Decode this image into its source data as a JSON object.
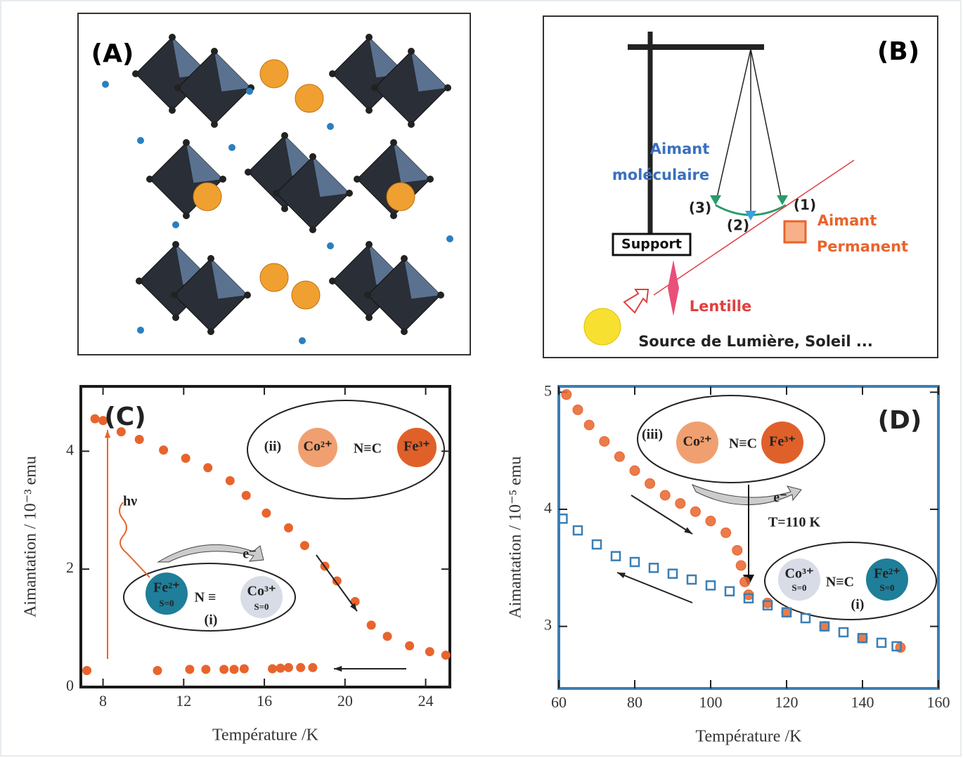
{
  "panels": {
    "A": {
      "label": "(A)"
    },
    "B": {
      "label": "(B)",
      "texts": [
        "Aimant",
        "moléculaire",
        "(3)",
        "(2)",
        "(1)",
        "Aimant",
        "Permanent",
        "Support",
        "Lentille",
        "Source de Lumière, Soleil ..."
      ]
    }
  },
  "chart_data": [
    {
      "type": "scatter",
      "label": "(C)",
      "x_label": "Température /K",
      "y_label": "Aimantation / 10⁻³ emu",
      "xlim": [
        6.9,
        25.2
      ],
      "xticks": [
        8,
        12,
        16,
        20,
        24
      ],
      "ylim": [
        0,
        5.1
      ],
      "yticks": [
        0,
        2,
        4
      ],
      "frame_color": "#1a1a1a",
      "annotations": [
        "(ii)",
        "Co²⁺",
        "N≡C",
        "Fe³⁺",
        "hν",
        "e⁻",
        "Fe²⁺",
        "S=0",
        "N ≡",
        "Co³⁺",
        "S=0",
        "(i)"
      ],
      "series": [
        {
          "color": "#e8642c",
          "marker": "circle",
          "x": [
            7.6,
            8.0,
            8.9,
            9.8,
            11.0,
            12.1,
            13.2,
            14.3,
            15.1,
            16.1,
            17.2,
            18.0,
            19.0,
            19.6,
            20.5,
            21.3,
            22.1,
            23.2,
            24.2,
            25.0
          ],
          "values": [
            4.55,
            4.52,
            4.33,
            4.2,
            4.02,
            3.88,
            3.72,
            3.5,
            3.25,
            2.95,
            2.7,
            2.4,
            2.05,
            1.8,
            1.45,
            1.05,
            0.86,
            0.7,
            0.6,
            0.54
          ]
        },
        {
          "color": "#e8642c",
          "marker": "circle",
          "x": [
            7.2,
            10.7,
            12.3,
            13.1,
            14.0,
            14.5,
            15.0,
            16.4,
            16.8,
            17.2,
            17.8,
            18.4
          ],
          "values": [
            0.28,
            0.28,
            0.3,
            0.3,
            0.3,
            0.3,
            0.31,
            0.31,
            0.32,
            0.33,
            0.33,
            0.33
          ]
        }
      ]
    },
    {
      "type": "scatter",
      "label": "(D)",
      "x_label": "Température /K",
      "y_label": "Aimantation / 10⁻⁵ emu",
      "xlim": [
        60,
        160
      ],
      "xticks": [
        60,
        80,
        100,
        120,
        140,
        160
      ],
      "ylim": [
        2.47,
        5.05
      ],
      "yticks": [
        3,
        4,
        5
      ],
      "frame_color": "#3a7fb5",
      "annotations": [
        "(iii)",
        "Co²⁺",
        "N≡C",
        "Fe³⁺",
        "e⁻",
        "T=110 K",
        "Co³⁺",
        "S=0",
        "N≡C",
        "Fe²⁺",
        "S=0",
        "(i)"
      ],
      "series": [
        {
          "color": "#e8642c",
          "marker": "circle",
          "x": [
            62,
            65,
            68,
            72,
            76,
            80,
            84,
            88,
            92,
            96,
            100,
            104,
            107,
            108,
            109,
            110,
            115,
            120,
            130,
            140,
            150
          ],
          "values": [
            4.98,
            4.85,
            4.72,
            4.58,
            4.45,
            4.33,
            4.22,
            4.12,
            4.05,
            3.98,
            3.9,
            3.8,
            3.65,
            3.52,
            3.38,
            3.27,
            3.2,
            3.12,
            3.0,
            2.9,
            2.82
          ]
        },
        {
          "color": "#3a7fb5",
          "marker": "square",
          "x": [
            61,
            65,
            70,
            75,
            80,
            85,
            90,
            95,
            100,
            105,
            110,
            115,
            120,
            125,
            130,
            135,
            140,
            145,
            149
          ],
          "values": [
            3.92,
            3.82,
            3.7,
            3.6,
            3.55,
            3.5,
            3.45,
            3.4,
            3.35,
            3.3,
            3.24,
            3.18,
            3.12,
            3.07,
            3.0,
            2.95,
            2.9,
            2.86,
            2.83
          ]
        }
      ]
    }
  ]
}
